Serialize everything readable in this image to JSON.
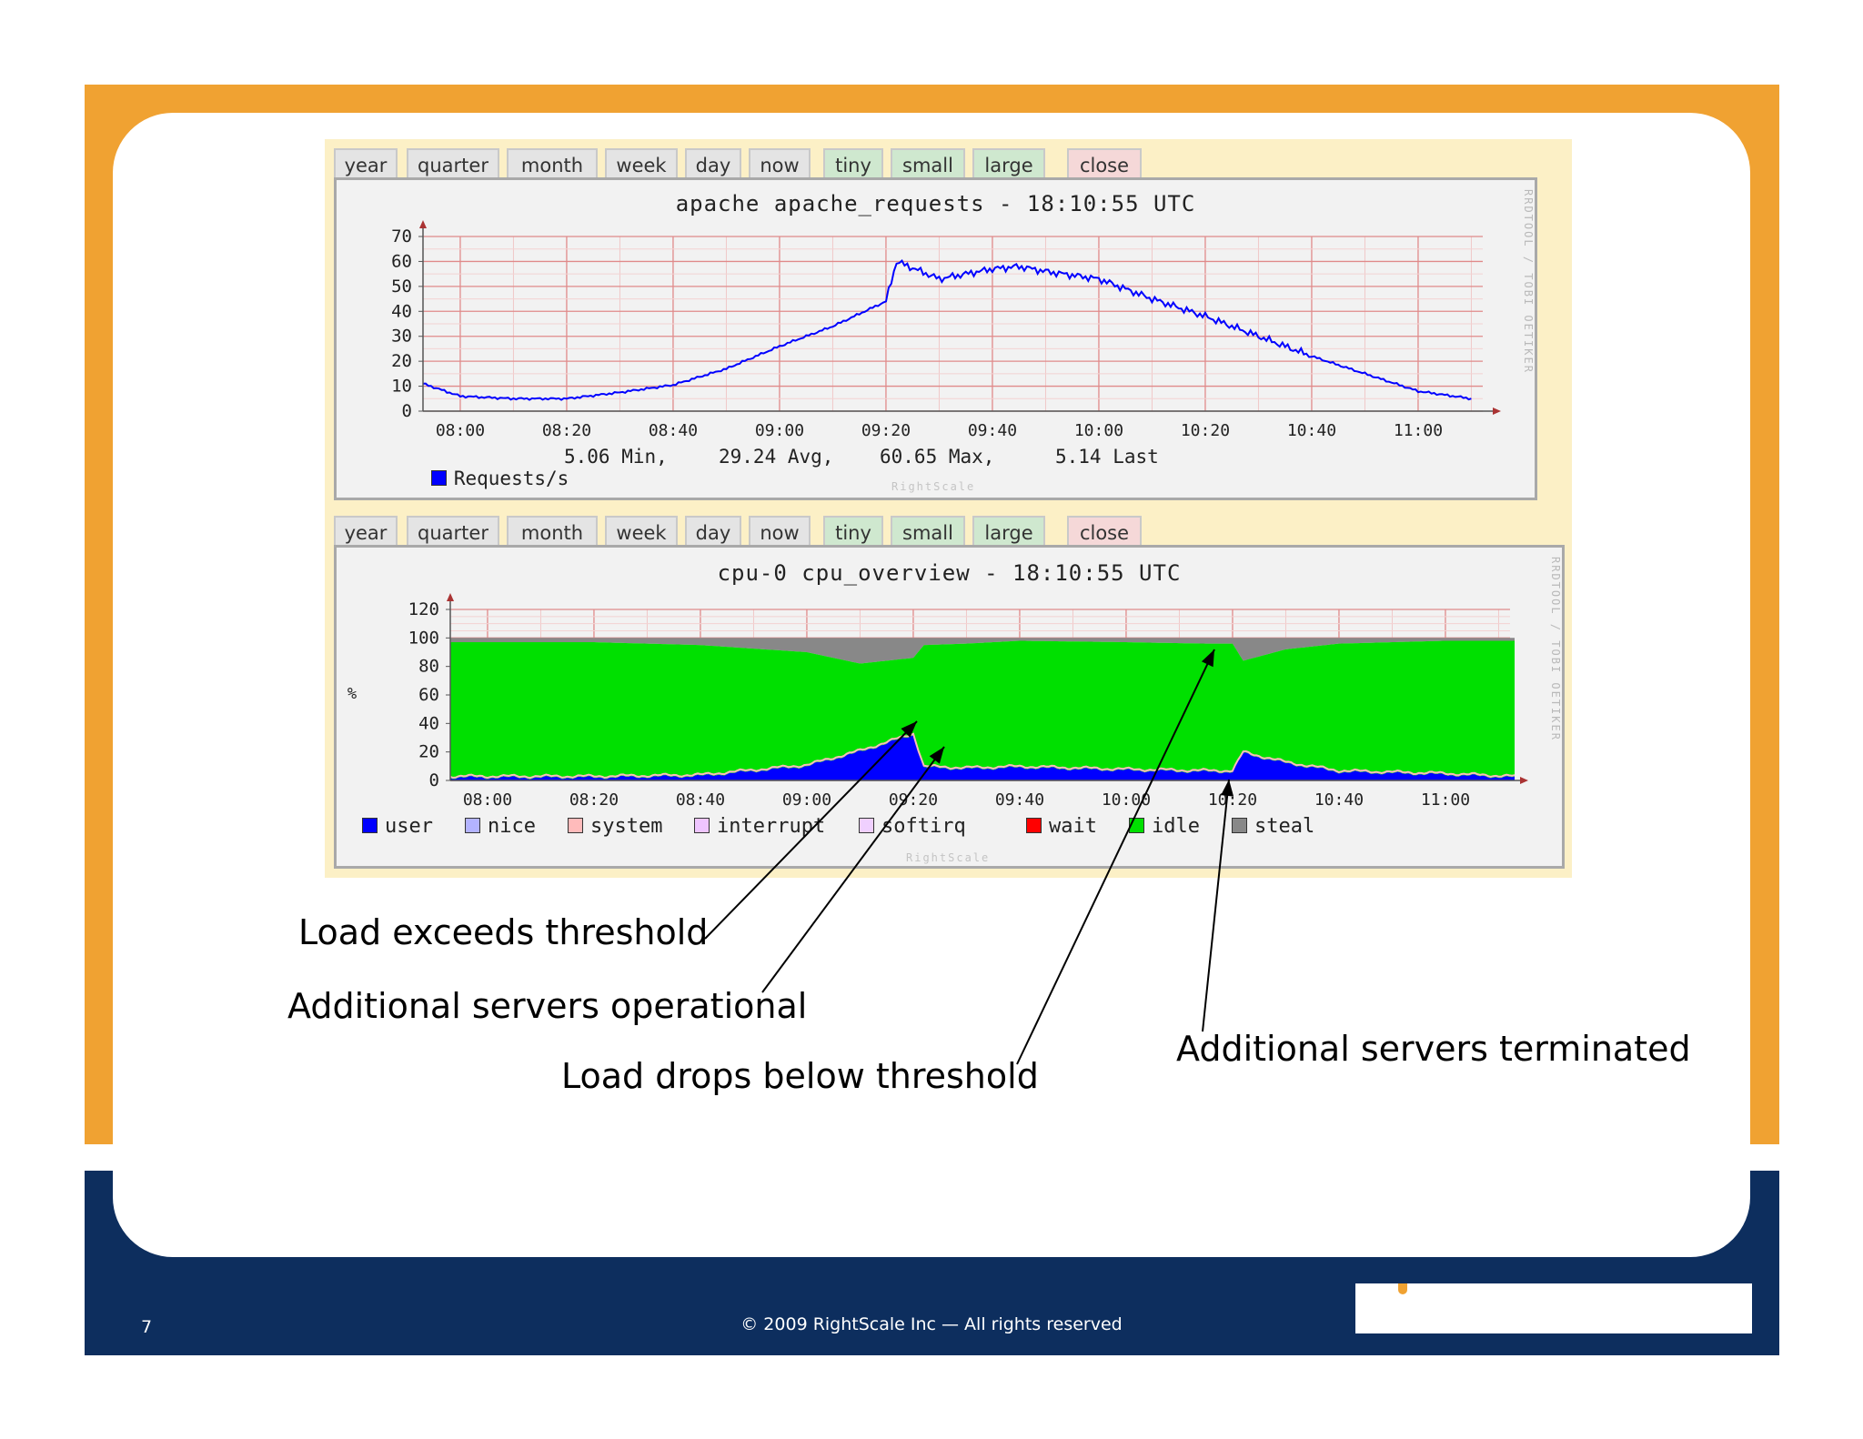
{
  "tabs": {
    "period": [
      "year",
      "quarter",
      "month",
      "week",
      "day",
      "now"
    ],
    "size": [
      "tiny",
      "small",
      "large"
    ],
    "close": "close"
  },
  "graph1": {
    "title": "apache apache_requests - 18:10:55 UTC",
    "side_text": "RRDTOOL / TOBI OETIKER",
    "footer": "RightScale",
    "legend_label": "Requests/s",
    "min": "5.06 Min,",
    "avg": "29.24 Avg,",
    "max": "60.65 Max,",
    "last": "5.14 Last",
    "series_color": "#0000ff"
  },
  "graph2": {
    "title": "cpu-0 cpu_overview - 18:10:55 UTC",
    "side_text": "RRDTOOL / TOBI OETIKER",
    "footer": "RightScale",
    "legend": [
      {
        "label": "user",
        "color": "#0000ff"
      },
      {
        "label": "nice",
        "color": "#b3b3ff"
      },
      {
        "label": "system",
        "color": "#ffbbbb"
      },
      {
        "label": "interrupt",
        "color": "#eec5ff"
      },
      {
        "label": "softirq",
        "color": "#f0d0ff"
      },
      {
        "label": "wait",
        "color": "#ff0000"
      },
      {
        "label": "idle",
        "color": "#00e000"
      },
      {
        "label": "steal",
        "color": "#888888"
      }
    ]
  },
  "annotations": {
    "load_exceeds": "Load exceeds threshold",
    "servers_operational": "Additional servers operational",
    "load_drops": "Load drops below threshold",
    "servers_terminated": "Additional servers terminated"
  },
  "footer": {
    "page_number": "7",
    "copyright": "© 2009 RightScale Inc — All rights reserved"
  },
  "chart_data": [
    {
      "type": "line",
      "title": "apache apache_requests - 18:10:55 UTC",
      "ylabel": "",
      "ylim": [
        0,
        70
      ],
      "yticks": [
        0,
        10,
        20,
        30,
        40,
        50,
        60,
        70
      ],
      "xticks": [
        "08:00",
        "08:20",
        "08:40",
        "09:00",
        "09:20",
        "09:40",
        "10:00",
        "10:20",
        "10:40",
        "11:00"
      ],
      "x": [
        "07:53",
        "08:00",
        "08:10",
        "08:20",
        "08:30",
        "08:40",
        "08:50",
        "09:00",
        "09:10",
        "09:20",
        "09:22",
        "09:30",
        "09:40",
        "09:45",
        "09:50",
        "10:00",
        "10:10",
        "10:20",
        "10:30",
        "10:40",
        "10:50",
        "11:00",
        "11:10"
      ],
      "series": [
        {
          "name": "Requests/s",
          "values": [
            11,
            6,
            5,
            5,
            7.5,
            10.5,
            17,
            26,
            34,
            44,
            60,
            53,
            57,
            58,
            56,
            53,
            45,
            38,
            30,
            22,
            15,
            8,
            5
          ]
        }
      ],
      "grid": true
    },
    {
      "type": "area",
      "title": "cpu-0 cpu_overview - 18:10:55 UTC",
      "ylabel": "%",
      "ylim": [
        0,
        120
      ],
      "yticks": [
        0,
        20,
        40,
        60,
        80,
        100,
        120
      ],
      "xticks": [
        "08:00",
        "08:20",
        "08:40",
        "09:00",
        "09:20",
        "09:40",
        "10:00",
        "10:20",
        "10:40",
        "11:00"
      ],
      "x": [
        "07:53",
        "08:00",
        "08:20",
        "08:40",
        "09:00",
        "09:10",
        "09:20",
        "09:22",
        "09:30",
        "09:40",
        "10:00",
        "10:15",
        "10:20",
        "10:22",
        "10:30",
        "10:40",
        "11:00",
        "11:13"
      ],
      "series": [
        {
          "name": "user",
          "values": [
            2,
            2,
            2,
            3,
            10,
            20,
            32,
            9,
            8,
            9,
            7,
            6,
            6,
            19,
            12,
            6,
            4,
            2
          ]
        },
        {
          "name": "idle",
          "values": [
            95,
            95,
            95,
            92,
            80,
            62,
            54,
            86,
            88,
            89,
            90,
            90,
            90,
            65,
            80,
            90,
            94,
            96
          ]
        },
        {
          "name": "steal",
          "values": [
            3,
            3,
            3,
            5,
            10,
            18,
            14,
            5,
            4,
            2,
            3,
            4,
            4,
            16,
            8,
            4,
            2,
            2
          ]
        }
      ],
      "grid": true,
      "legend_placement": "bottom"
    }
  ]
}
